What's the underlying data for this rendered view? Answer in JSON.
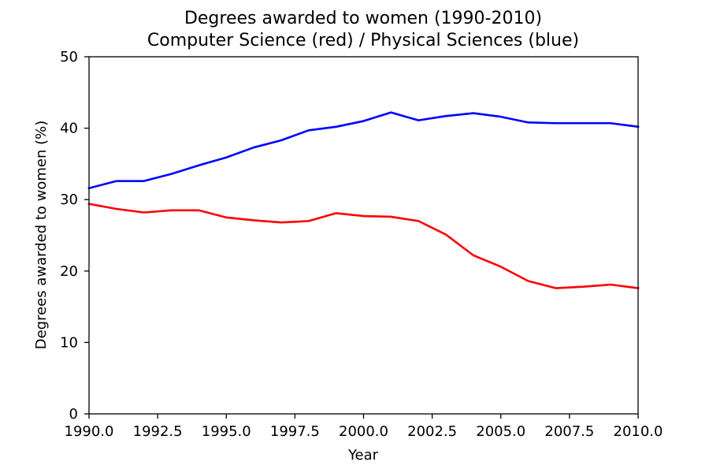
{
  "chart_data": {
    "type": "line",
    "title": "Degrees awarded to women (1990-2010)",
    "subtitle": "Computer Science (red) / Physical Sciences (blue)",
    "xlabel": "Year",
    "ylabel": "Degrees awarded to women (%)",
    "xlim": [
      1990,
      2010
    ],
    "ylim": [
      0,
      50
    ],
    "x_ticks": [
      1990,
      1992.5,
      1995,
      1997.5,
      2000,
      2002.5,
      2005,
      2007.5,
      2010
    ],
    "x_tick_labels": [
      "1990.0",
      "1992.5",
      "1995.0",
      "1997.5",
      "2000.0",
      "2002.5",
      "2005.0",
      "2007.5",
      "2010.0"
    ],
    "y_ticks": [
      0,
      10,
      20,
      30,
      40,
      50
    ],
    "y_tick_labels": [
      "0",
      "10",
      "20",
      "30",
      "40",
      "50"
    ],
    "grid": false,
    "legend": "none",
    "x": [
      1990,
      1991,
      1992,
      1993,
      1994,
      1995,
      1996,
      1997,
      1998,
      1999,
      2000,
      2001,
      2002,
      2003,
      2004,
      2005,
      2006,
      2007,
      2008,
      2009,
      2010
    ],
    "series": [
      {
        "color": "#0000ff",
        "values": [
          31.6,
          32.6,
          32.6,
          33.6,
          34.8,
          35.9,
          37.3,
          38.3,
          39.7,
          40.2,
          41.0,
          42.2,
          41.1,
          41.7,
          42.1,
          41.6,
          40.8,
          40.7,
          40.7,
          40.7,
          40.2
        ]
      },
      {
        "color": "#ff0000",
        "values": [
          29.4,
          28.7,
          28.2,
          28.5,
          28.5,
          27.5,
          27.1,
          26.8,
          27.0,
          28.1,
          27.7,
          27.6,
          27.0,
          25.1,
          22.2,
          20.6,
          18.6,
          17.6,
          17.8,
          18.1,
          17.6
        ]
      }
    ]
  }
}
